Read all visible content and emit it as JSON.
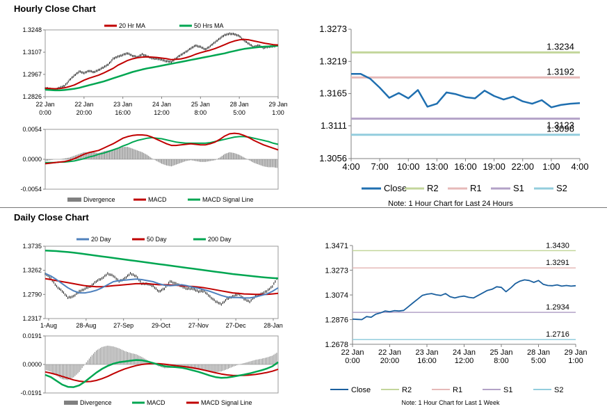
{
  "sections": {
    "hourly_title": "Hourly Close Chart",
    "daily_title": "Daily Close Chart"
  },
  "colors": {
    "red": "#c00000",
    "green": "#00a651",
    "blue": "#4f81bd",
    "close_blue": "#1f6fb0",
    "dark_blue": "#1a5f9e",
    "grey": "#808080",
    "r2": "#c3d69b",
    "r1": "#e6b9b8",
    "s1": "#b3a2c7",
    "s2": "#93cddd",
    "axis": "#808080",
    "frame": "#999999"
  },
  "chart_data": [
    {
      "id": "hourly_price",
      "type": "line",
      "legend": [
        "20 Hr MA",
        "50 Hrs MA"
      ],
      "yticks": [
        "1.3248",
        "1.3107",
        "1.2967",
        "1.2826"
      ],
      "ylim": [
        1.2826,
        1.3248
      ],
      "xticks": [
        [
          "22 Jan",
          "0:00"
        ],
        [
          "22 Jan",
          "20:00"
        ],
        [
          "23 Jan",
          "16:00"
        ],
        [
          "24 Jan",
          "12:00"
        ],
        [
          "25 Jan",
          "8:00"
        ],
        [
          "28 Jan",
          "5:00"
        ],
        [
          "29 Jan",
          "1:00"
        ]
      ],
      "series": [
        {
          "name": "Close",
          "values": [
            1.288,
            1.2875,
            1.287,
            1.2882,
            1.2895,
            1.293,
            1.296,
            1.2985,
            1.2975,
            1.299,
            1.298,
            1.2995,
            1.301,
            1.303,
            1.3065,
            1.308,
            1.309,
            1.31,
            1.3085,
            1.3075,
            1.3095,
            1.308,
            1.307,
            1.3065,
            1.306,
            1.305,
            1.3045,
            1.307,
            1.309,
            1.311,
            1.313,
            1.315,
            1.314,
            1.3125,
            1.3145,
            1.317,
            1.3195,
            1.3215,
            1.3225,
            1.322,
            1.321,
            1.318,
            1.316,
            1.314,
            1.315,
            1.3135,
            1.314,
            1.3145,
            1.315
          ]
        },
        {
          "name": "20 Hr MA",
          "values": [
            1.288,
            1.2878,
            1.2876,
            1.2878,
            1.2882,
            1.289,
            1.29,
            1.2915,
            1.293,
            1.2942,
            1.2952,
            1.2962,
            1.2975,
            1.299,
            1.3005,
            1.3025,
            1.304,
            1.3055,
            1.3065,
            1.3072,
            1.3076,
            1.3078,
            1.3076,
            1.3074,
            1.307,
            1.3066,
            1.306,
            1.3062,
            1.3065,
            1.3072,
            1.3082,
            1.3094,
            1.3104,
            1.3112,
            1.312,
            1.313,
            1.3142,
            1.3155,
            1.3168,
            1.3178,
            1.3185,
            1.3188,
            1.3185,
            1.3178,
            1.3172,
            1.3165,
            1.316,
            1.3155,
            1.3152
          ]
        },
        {
          "name": "50 Hrs MA",
          "values": [
            1.287,
            1.2868,
            1.2866,
            1.2866,
            1.2868,
            1.2872,
            1.2876,
            1.2882,
            1.289,
            1.2898,
            1.2906,
            1.2914,
            1.2922,
            1.2932,
            1.2942,
            1.2952,
            1.2962,
            1.2972,
            1.2982,
            1.299,
            1.2998,
            1.3005,
            1.301,
            1.3016,
            1.3022,
            1.3028,
            1.3034,
            1.304,
            1.3046,
            1.3052,
            1.3058,
            1.3064,
            1.307,
            1.3076,
            1.3082,
            1.3088,
            1.3094,
            1.31,
            1.3108,
            1.3115,
            1.3122,
            1.3128,
            1.3132,
            1.3136,
            1.3139,
            1.3142,
            1.3144,
            1.3146,
            1.3148
          ]
        }
      ]
    },
    {
      "id": "hourly_macd",
      "type": "line",
      "legend": [
        "Divergence",
        "MACD",
        "MACD Signal Line"
      ],
      "yticks": [
        "0.0054",
        "0.0000",
        "-0.0054"
      ],
      "ylim": [
        -0.0054,
        0.0054
      ],
      "series": [
        {
          "name": "MACD",
          "values": [
            -0.0008,
            -0.0007,
            -0.0006,
            -0.0005,
            -0.0004,
            -0.0002,
            0.0001,
            0.0005,
            0.0009,
            0.0012,
            0.0014,
            0.0016,
            0.002,
            0.0024,
            0.0028,
            0.0033,
            0.0038,
            0.0041,
            0.0043,
            0.0044,
            0.0044,
            0.0043,
            0.004,
            0.0036,
            0.0032,
            0.0028,
            0.0025,
            0.0025,
            0.0026,
            0.0027,
            0.0028,
            0.0027,
            0.0026,
            0.0026,
            0.0028,
            0.0031,
            0.0036,
            0.0042,
            0.0046,
            0.0047,
            0.0046,
            0.0043,
            0.0039,
            0.0034,
            0.003,
            0.0026,
            0.0023,
            0.002,
            0.0017
          ]
        },
        {
          "name": "MACD Signal Line",
          "values": [
            -0.0006,
            -0.0006,
            -0.0006,
            -0.0005,
            -0.0005,
            -0.0004,
            -0.0003,
            -0.0001,
            0.0001,
            0.0004,
            0.0006,
            0.0009,
            0.0011,
            0.0014,
            0.0017,
            0.002,
            0.0024,
            0.0027,
            0.0031,
            0.0034,
            0.0036,
            0.0038,
            0.0039,
            0.0038,
            0.0037,
            0.0035,
            0.0033,
            0.0031,
            0.003,
            0.0029,
            0.0029,
            0.0029,
            0.0029,
            0.0029,
            0.003,
            0.0032,
            0.0034,
            0.0036,
            0.0038,
            0.004,
            0.0041,
            0.0041,
            0.004,
            0.0038,
            0.0036,
            0.0034,
            0.0032,
            0.0029,
            0.0027
          ]
        }
      ]
    },
    {
      "id": "hourly_levels",
      "type": "line",
      "yticks": [
        "1.3273",
        "1.3219",
        "1.3165",
        "1.3111",
        "1.3056"
      ],
      "ylim": [
        1.3056,
        1.3273
      ],
      "xticks": [
        "4:00",
        "7:00",
        "10:00",
        "13:00",
        "16:00",
        "19:00",
        "22:00",
        "1:00",
        "4:00"
      ],
      "levels": [
        {
          "name": "R2",
          "value": 1.3234,
          "label": "1.3234"
        },
        {
          "name": "R1",
          "value": 1.3192,
          "label": "1.3192"
        },
        {
          "name": "S1",
          "value": 1.3123,
          "label": "1.3123"
        },
        {
          "name": "S2",
          "value": 1.3096,
          "label": "1.3096"
        }
      ],
      "series": [
        {
          "name": "Close",
          "values": [
            1.3198,
            1.3198,
            1.319,
            1.3175,
            1.3158,
            1.3166,
            1.3157,
            1.3171,
            1.3143,
            1.3148,
            1.3167,
            1.3164,
            1.3159,
            1.3157,
            1.317,
            1.3161,
            1.3155,
            1.316,
            1.3152,
            1.3148,
            1.3154,
            1.3142,
            1.3146,
            1.3148,
            1.3149
          ]
        }
      ],
      "legend": [
        "Close",
        "R2",
        "R1",
        "S1",
        "S2"
      ],
      "note": "Note: 1 Hour Chart for Last 24 Hours"
    },
    {
      "id": "daily_price",
      "type": "line",
      "legend": [
        "20 Day",
        "50 Day",
        "200 Day"
      ],
      "yticks": [
        "1.3735",
        "1.3262",
        "1.2790",
        "1.2317"
      ],
      "ylim": [
        1.2317,
        1.3735
      ],
      "xticks": [
        "1-Aug",
        "28-Aug",
        "27-Sep",
        "29-Oct",
        "27-Nov",
        "27-Dec",
        "28-Jan"
      ],
      "series": [
        {
          "name": "Close",
          "values": [
            1.32,
            1.31,
            1.295,
            1.285,
            1.273,
            1.275,
            1.285,
            1.29,
            1.295,
            1.305,
            1.31,
            1.32,
            1.315,
            1.305,
            1.31,
            1.32,
            1.315,
            1.3,
            1.3,
            1.295,
            1.285,
            1.29,
            1.305,
            1.3,
            1.295,
            1.29,
            1.29,
            1.285,
            1.285,
            1.275,
            1.265,
            1.26,
            1.27,
            1.275,
            1.28,
            1.27,
            1.265,
            1.275,
            1.28,
            1.285,
            1.295,
            1.315
          ]
        },
        {
          "name": "20 Day",
          "values": [
            1.32,
            1.315,
            1.308,
            1.3,
            1.292,
            1.286,
            1.282,
            1.282,
            1.284,
            1.287,
            1.292,
            1.298,
            1.304,
            1.306,
            1.307,
            1.308,
            1.309,
            1.308,
            1.306,
            1.304,
            1.3,
            1.297,
            1.296,
            1.297,
            1.298,
            1.296,
            1.293,
            1.291,
            1.288,
            1.285,
            1.281,
            1.277,
            1.274,
            1.273,
            1.273,
            1.272,
            1.272,
            1.274,
            1.277,
            1.28,
            1.285,
            1.292
          ]
        },
        {
          "name": "50 Day",
          "values": [
            1.31,
            1.308,
            1.306,
            1.304,
            1.302,
            1.3,
            1.298,
            1.296,
            1.295,
            1.294,
            1.294,
            1.295,
            1.296,
            1.297,
            1.298,
            1.299,
            1.3,
            1.3,
            1.3,
            1.299,
            1.298,
            1.298,
            1.2975,
            1.297,
            1.296,
            1.295,
            1.2945,
            1.2935,
            1.292,
            1.29,
            1.288,
            1.286,
            1.284,
            1.282,
            1.281,
            1.28,
            1.2795,
            1.279,
            1.279,
            1.279,
            1.28,
            1.281
          ]
        },
        {
          "name": "200 Day",
          "values": [
            1.365,
            1.3645,
            1.364,
            1.363,
            1.362,
            1.361,
            1.3595,
            1.358,
            1.3565,
            1.355,
            1.3535,
            1.352,
            1.3505,
            1.349,
            1.3475,
            1.346,
            1.3445,
            1.343,
            1.3415,
            1.34,
            1.3385,
            1.337,
            1.3355,
            1.334,
            1.3325,
            1.331,
            1.3295,
            1.328,
            1.3265,
            1.325,
            1.3235,
            1.322,
            1.3205,
            1.319,
            1.3178,
            1.3166,
            1.3154,
            1.3142,
            1.313,
            1.312,
            1.3112,
            1.3105
          ]
        }
      ]
    },
    {
      "id": "daily_macd",
      "type": "line",
      "legend": [
        "Divergence",
        "MACD",
        "MACD Signal Line"
      ],
      "yticks": [
        "0.0191",
        "0.0000",
        "-0.0191"
      ],
      "ylim": [
        -0.0191,
        0.0191
      ],
      "series": [
        {
          "name": "MACD",
          "values": [
            -0.007,
            -0.0085,
            -0.011,
            -0.0135,
            -0.015,
            -0.0152,
            -0.014,
            -0.0115,
            -0.0085,
            -0.0055,
            -0.003,
            -0.001,
            0.0005,
            0.0015,
            0.002,
            0.0025,
            0.003,
            0.0028,
            0.002,
            0.001,
            -0.0002,
            -0.0012,
            -0.0016,
            -0.0018,
            -0.0022,
            -0.003,
            -0.004,
            -0.005,
            -0.0062,
            -0.0075,
            -0.0085,
            -0.009,
            -0.0088,
            -0.0082,
            -0.0075,
            -0.0068,
            -0.006,
            -0.005,
            -0.004,
            -0.0028,
            -0.0012,
            0.0015
          ]
        },
        {
          "name": "MACD Signal Line",
          "values": [
            -0.005,
            -0.0058,
            -0.0068,
            -0.008,
            -0.0092,
            -0.0104,
            -0.0112,
            -0.0116,
            -0.0114,
            -0.0107,
            -0.0095,
            -0.008,
            -0.0062,
            -0.0045,
            -0.003,
            -0.0018,
            -0.0008,
            0.0,
            0.0004,
            0.0006,
            0.0005,
            0.0002,
            -0.0003,
            -0.0008,
            -0.0012,
            -0.0017,
            -0.0023,
            -0.003,
            -0.0038,
            -0.0047,
            -0.0056,
            -0.0064,
            -0.007,
            -0.0073,
            -0.0074,
            -0.0073,
            -0.0071,
            -0.0067,
            -0.0061,
            -0.0054,
            -0.0045,
            -0.0032
          ]
        }
      ]
    },
    {
      "id": "daily_levels",
      "type": "line",
      "yticks": [
        "1.3471",
        "1.3273",
        "1.3074",
        "1.2876",
        "1.2678"
      ],
      "ylim": [
        1.2678,
        1.3471
      ],
      "xticks": [
        [
          "22 Jan",
          "0:00"
        ],
        [
          "22 Jan",
          "20:00"
        ],
        [
          "23 Jan",
          "16:00"
        ],
        [
          "24 Jan",
          "12:00"
        ],
        [
          "25 Jan",
          "8:00"
        ],
        [
          "28 Jan",
          "5:00"
        ],
        [
          "29 Jan",
          "1:00"
        ]
      ],
      "levels": [
        {
          "name": "R2",
          "value": 1.343,
          "label": "1.3430"
        },
        {
          "name": "R1",
          "value": 1.3291,
          "label": "1.3291"
        },
        {
          "name": "S1",
          "value": 1.2934,
          "label": "1.2934"
        },
        {
          "name": "S2",
          "value": 1.2716,
          "label": "1.2716"
        }
      ],
      "series": [
        {
          "name": "Close",
          "values": [
            1.288,
            1.2878,
            1.2876,
            1.29,
            1.2895,
            1.292,
            1.293,
            1.2945,
            1.294,
            1.2948,
            1.2945,
            1.295,
            1.298,
            1.301,
            1.304,
            1.307,
            1.308,
            1.3085,
            1.3075,
            1.307,
            1.3085,
            1.306,
            1.305,
            1.306,
            1.3065,
            1.3055,
            1.305,
            1.307,
            1.309,
            1.311,
            1.312,
            1.314,
            1.3135,
            1.31,
            1.313,
            1.3165,
            1.3185,
            1.3195,
            1.319,
            1.3175,
            1.319,
            1.316,
            1.315,
            1.3148,
            1.3155,
            1.3145,
            1.315,
            1.3145,
            1.3148
          ]
        }
      ],
      "legend": [
        "Close",
        "R2",
        "R1",
        "S1",
        "S2"
      ],
      "note": "Note: 1 Hour Chart for Last 1 Week"
    }
  ]
}
